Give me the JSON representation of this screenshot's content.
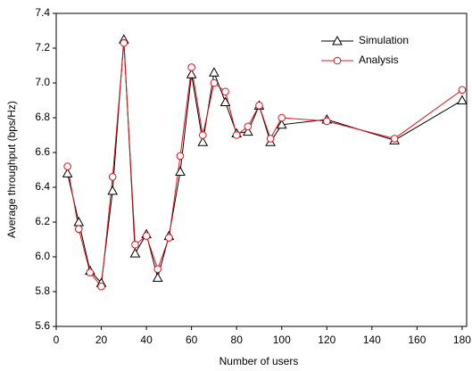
{
  "chart_data": {
    "type": "line",
    "x_label": "Number of users",
    "y_label": "Average throughput (bps/Hz)",
    "x": [
      5,
      10,
      15,
      20,
      25,
      30,
      35,
      40,
      45,
      50,
      55,
      60,
      65,
      70,
      75,
      80,
      85,
      90,
      95,
      100,
      120,
      150,
      180
    ],
    "series": [
      {
        "name": "Simulation",
        "color": "#000000",
        "marker": "triangle",
        "values": [
          6.48,
          6.2,
          5.92,
          5.85,
          6.38,
          7.25,
          6.02,
          6.13,
          5.88,
          6.12,
          6.49,
          7.05,
          6.66,
          7.06,
          6.89,
          6.71,
          6.72,
          6.87,
          6.66,
          6.76,
          6.79,
          6.67,
          6.9
        ]
      },
      {
        "name": "Analysis",
        "color": "#e8101a",
        "marker": "circle",
        "values": [
          6.52,
          6.16,
          5.91,
          5.83,
          6.46,
          7.23,
          6.07,
          6.12,
          5.93,
          6.11,
          6.58,
          7.09,
          6.7,
          7.0,
          6.95,
          6.7,
          6.75,
          6.87,
          6.68,
          6.8,
          6.78,
          6.68,
          6.96
        ]
      }
    ],
    "xlim": [
      0,
      182
    ],
    "ylim": [
      5.6,
      7.4
    ],
    "xticks": [
      0,
      20,
      40,
      60,
      80,
      100,
      120,
      140,
      160,
      180
    ],
    "yticks": [
      5.6,
      5.8,
      {
        "value": 6,
        "label": "6.0"
      },
      6.2,
      6.4,
      6.6,
      6.8,
      {
        "value": 7,
        "label": "7.0"
      },
      7.2,
      7.4
    ],
    "legend": "upper right",
    "grid": false
  }
}
